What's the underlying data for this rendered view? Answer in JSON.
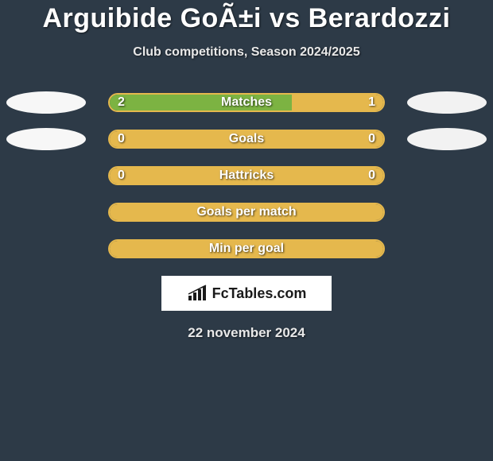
{
  "title": "Arguibide GoÃ±i vs Berardozzi",
  "subtitle": "Club competitions, Season 2024/2025",
  "footer_brand": "FcTables.com",
  "footer_date": "22 november 2024",
  "colors": {
    "background": "#2d3a47",
    "left_ellipse": "#f7f7f7",
    "right_ellipse": "#f2f2f2",
    "left_fill": "#7cb342",
    "right_fill": "#e5b84d",
    "border": "#e5b84d",
    "text": "#ffffff"
  },
  "stats": [
    {
      "label": "Matches",
      "left_value": "2",
      "right_value": "1",
      "left_pct": 66.7,
      "show_ellipses": true
    },
    {
      "label": "Goals",
      "left_value": "0",
      "right_value": "0",
      "left_pct": 0,
      "show_ellipses": true
    },
    {
      "label": "Hattricks",
      "left_value": "0",
      "right_value": "0",
      "left_pct": 0,
      "show_ellipses": false
    },
    {
      "label": "Goals per match",
      "left_value": "",
      "right_value": "",
      "left_pct": 0,
      "show_ellipses": false
    },
    {
      "label": "Min per goal",
      "left_value": "",
      "right_value": "",
      "left_pct": 0,
      "show_ellipses": false
    }
  ]
}
